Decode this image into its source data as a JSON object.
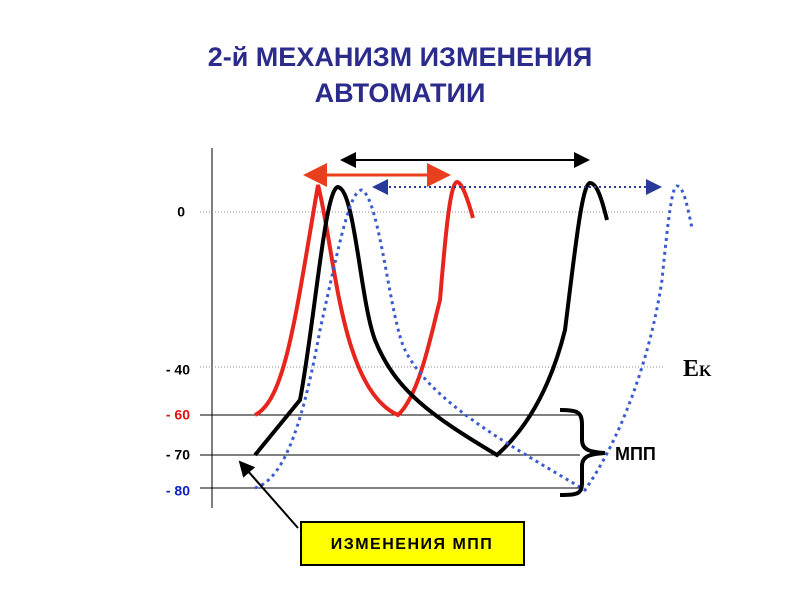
{
  "title_lines": [
    "2-й МЕХАНИЗМ  ИЗМЕНЕНИЯ",
    "АВТОМАТИИ"
  ],
  "axis_labels": [
    "0",
    "- 40",
    "- 60",
    "- 70",
    "- 80"
  ],
  "ek_label": {
    "main": "E",
    "sub": "K"
  },
  "mpp_label": "МПП",
  "callout": "ИЗМЕНЕНИЯ  МПП"
}
